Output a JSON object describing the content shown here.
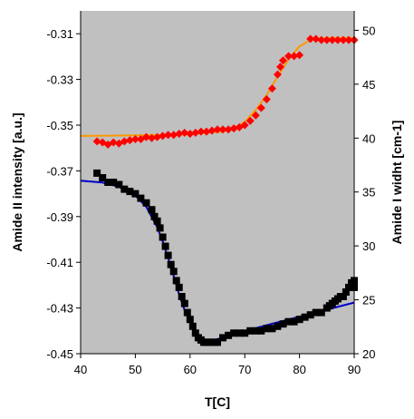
{
  "chart_data": {
    "type": "scatter",
    "title": "",
    "xlabel": "T[C]",
    "ylabel_left": "Amide II intensity [a.u.]",
    "ylabel_right": "Amide I widht [cm-1]",
    "xlim": [
      40,
      90
    ],
    "ylim_left": [
      -0.45,
      -0.3
    ],
    "ylim_right": [
      20,
      51.8
    ],
    "x_ticks": [
      "40",
      "50",
      "60",
      "70",
      "80",
      "90"
    ],
    "y_left_ticks": [
      "-0.31",
      "-0.33",
      "-0.35",
      "-0.37",
      "-0.39",
      "-0.41",
      "-0.43",
      "-0.45"
    ],
    "y_right_ticks": [
      "20",
      "25",
      "30",
      "35",
      "40",
      "45",
      "50"
    ],
    "plot_background": "#c0c0c0",
    "grid": false,
    "legend": "none",
    "series": [
      {
        "axis": "left",
        "marker": "square",
        "color": "#000000",
        "points": [
          [
            43,
            -0.371
          ],
          [
            44,
            -0.373
          ],
          [
            45,
            -0.375
          ],
          [
            46,
            -0.375
          ],
          [
            47,
            -0.376
          ],
          [
            48,
            -0.378
          ],
          [
            49,
            -0.379
          ],
          [
            50,
            -0.38
          ],
          [
            51,
            -0.382
          ],
          [
            52,
            -0.384
          ],
          [
            53,
            -0.387
          ],
          [
            53.5,
            -0.39
          ],
          [
            54,
            -0.392
          ],
          [
            54.5,
            -0.395
          ],
          [
            55,
            -0.399
          ],
          [
            55.5,
            -0.403
          ],
          [
            56,
            -0.407
          ],
          [
            56.5,
            -0.411
          ],
          [
            57,
            -0.414
          ],
          [
            57.5,
            -0.418
          ],
          [
            58,
            -0.421
          ],
          [
            58.5,
            -0.425
          ],
          [
            59,
            -0.428
          ],
          [
            59.5,
            -0.432
          ],
          [
            60,
            -0.435
          ],
          [
            60.5,
            -0.438
          ],
          [
            61,
            -0.441
          ],
          [
            61.5,
            -0.443
          ],
          [
            62,
            -0.444
          ],
          [
            62.5,
            -0.445
          ],
          [
            63,
            -0.445
          ],
          [
            63.5,
            -0.445
          ],
          [
            64,
            -0.445
          ],
          [
            64.5,
            -0.445
          ],
          [
            65,
            -0.445
          ],
          [
            66,
            -0.443
          ],
          [
            67,
            -0.442
          ],
          [
            68,
            -0.441
          ],
          [
            69,
            -0.441
          ],
          [
            70,
            -0.441
          ],
          [
            71,
            -0.44
          ],
          [
            72,
            -0.44
          ],
          [
            73,
            -0.44
          ],
          [
            74,
            -0.439
          ],
          [
            75,
            -0.439
          ],
          [
            76,
            -0.438
          ],
          [
            77,
            -0.437
          ],
          [
            78,
            -0.436
          ],
          [
            79,
            -0.436
          ],
          [
            80,
            -0.435
          ],
          [
            81,
            -0.434
          ],
          [
            82,
            -0.433
          ],
          [
            83,
            -0.432
          ],
          [
            84,
            -0.432
          ],
          [
            85,
            -0.43
          ],
          [
            85.5,
            -0.429
          ],
          [
            86,
            -0.428
          ],
          [
            86.5,
            -0.427
          ],
          [
            87,
            -0.426
          ],
          [
            87.5,
            -0.425
          ],
          [
            88,
            -0.425
          ],
          [
            88.5,
            -0.423
          ],
          [
            89,
            -0.421
          ],
          [
            89.5,
            -0.419
          ],
          [
            90,
            -0.418
          ],
          [
            90,
            -0.421
          ]
        ]
      },
      {
        "axis": "left",
        "marker": "line",
        "color": "#0000cc",
        "points": [
          [
            40,
            -0.3743
          ],
          [
            44,
            -0.3751
          ],
          [
            47,
            -0.377
          ],
          [
            50,
            -0.3808
          ],
          [
            52,
            -0.3858
          ],
          [
            54,
            -0.3947
          ],
          [
            55,
            -0.4008
          ],
          [
            56,
            -0.408
          ],
          [
            57,
            -0.416
          ],
          [
            58,
            -0.424
          ],
          [
            59,
            -0.431
          ],
          [
            60,
            -0.4367
          ],
          [
            61,
            -0.4407
          ],
          [
            62,
            -0.4431
          ],
          [
            63,
            -0.4441
          ],
          [
            64,
            -0.4442
          ],
          [
            65,
            -0.4436
          ],
          [
            67,
            -0.4422
          ],
          [
            70,
            -0.4401
          ],
          [
            75,
            -0.4369
          ],
          [
            80,
            -0.4338
          ],
          [
            85,
            -0.4307
          ],
          [
            90,
            -0.4276
          ]
        ]
      },
      {
        "axis": "right",
        "marker": "diamond",
        "color": "#ff0000",
        "points": [
          [
            43,
            39.7
          ],
          [
            44,
            39.6
          ],
          [
            45,
            39.4
          ],
          [
            46,
            39.6
          ],
          [
            47,
            39.5
          ],
          [
            48,
            39.7
          ],
          [
            49,
            39.8
          ],
          [
            50,
            39.9
          ],
          [
            51,
            39.9
          ],
          [
            52,
            40.1
          ],
          [
            53,
            40.0
          ],
          [
            54,
            40.1
          ],
          [
            55,
            40.2
          ],
          [
            56,
            40.3
          ],
          [
            57,
            40.3
          ],
          [
            58,
            40.4
          ],
          [
            59,
            40.5
          ],
          [
            60,
            40.4
          ],
          [
            61,
            40.5
          ],
          [
            62,
            40.6
          ],
          [
            63,
            40.6
          ],
          [
            64,
            40.7
          ],
          [
            65,
            40.8
          ],
          [
            66,
            40.8
          ],
          [
            67,
            40.8
          ],
          [
            68,
            40.9
          ],
          [
            69,
            41.0
          ],
          [
            70,
            41.2
          ],
          [
            71,
            41.6
          ],
          [
            72,
            42.1
          ],
          [
            73,
            42.8
          ],
          [
            74,
            43.6
          ],
          [
            75,
            44.6
          ],
          [
            76,
            45.9
          ],
          [
            76.5,
            46.6
          ],
          [
            77,
            47.2
          ],
          [
            78,
            47.6
          ],
          [
            79,
            47.6
          ],
          [
            80,
            47.7
          ],
          [
            82,
            49.2
          ],
          [
            83,
            49.2
          ],
          [
            84,
            49.1
          ],
          [
            85,
            49.1
          ],
          [
            86,
            49.1
          ],
          [
            87,
            49.1
          ],
          [
            88,
            49.1
          ],
          [
            89,
            49.1
          ],
          [
            90,
            49.1
          ]
        ]
      },
      {
        "axis": "right",
        "marker": "line",
        "color": "#ff9900",
        "points": [
          [
            40,
            40.2
          ],
          [
            50,
            40.25
          ],
          [
            60,
            40.35
          ],
          [
            66,
            40.6
          ],
          [
            68,
            40.9
          ],
          [
            70,
            41.5
          ],
          [
            72,
            42.6
          ],
          [
            74,
            44.0
          ],
          [
            76,
            45.7
          ],
          [
            78,
            47.3
          ],
          [
            80,
            48.5
          ],
          [
            82,
            49.1
          ],
          [
            85,
            49.3
          ],
          [
            90,
            49.3
          ]
        ]
      }
    ]
  }
}
